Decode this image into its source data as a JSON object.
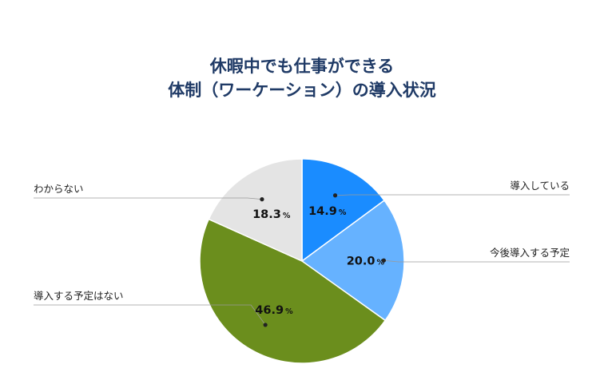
{
  "chart_data": {
    "type": "pie",
    "title": [
      "休暇中でも仕事ができる",
      "体制（ワーケーション）の導入状況"
    ],
    "categories": [
      "導入している",
      "今後導入する予定",
      "導入する予定はない",
      "わからない"
    ],
    "values": [
      14.9,
      20.0,
      46.9,
      18.3
    ],
    "unit": "%",
    "colors": [
      "#1a8cff",
      "#66b2ff",
      "#6b8e1d",
      "#e4e4e4"
    ],
    "label_side": [
      "right",
      "right",
      "left",
      "left"
    ]
  }
}
